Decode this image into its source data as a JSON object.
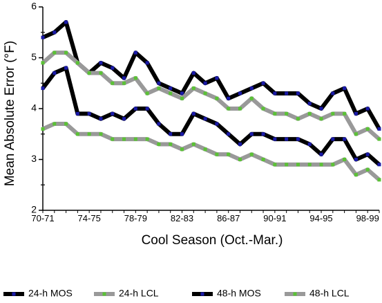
{
  "chart_data": {
    "type": "line",
    "xlabel": "Cool Season (Oct.-Mar.)",
    "ylabel": "Mean Absolute Error (°F)",
    "ylim": [
      2,
      6
    ],
    "y_ticks": [
      "2",
      "3",
      "4",
      "5",
      "6"
    ],
    "categories": [
      "70-71",
      "71-72",
      "72-73",
      "73-74",
      "74-75",
      "75-76",
      "76-77",
      "77-78",
      "78-79",
      "79-80",
      "80-81",
      "81-82",
      "82-83",
      "83-84",
      "84-85",
      "85-86",
      "86-87",
      "87-88",
      "88-89",
      "89-90",
      "90-91",
      "91-92",
      "92-93",
      "93-94",
      "94-95",
      "95-96",
      "96-97",
      "97-98",
      "98-99",
      "99-00"
    ],
    "x_tick_labels": [
      "70-71",
      "74-75",
      "78-79",
      "82-83",
      "86-87",
      "90-91",
      "94-95",
      "98-99"
    ],
    "x_tick_label_indices": [
      0,
      4,
      8,
      12,
      16,
      20,
      24,
      28
    ],
    "legend_position": "bottom",
    "series": [
      {
        "name": "24-h MOS",
        "line_color": "#000000",
        "marker_color": "#1a1aa8",
        "values": [
          4.4,
          4.7,
          4.8,
          3.9,
          3.9,
          3.8,
          3.9,
          3.8,
          4.0,
          4.0,
          3.7,
          3.5,
          3.5,
          3.9,
          3.8,
          3.7,
          3.5,
          3.3,
          3.5,
          3.5,
          3.4,
          3.4,
          3.4,
          3.3,
          3.1,
          3.4,
          3.4,
          3.0,
          3.1,
          2.9
        ]
      },
      {
        "name": "24-h LCL",
        "line_color": "#999999",
        "marker_color": "#5bc236",
        "values": [
          3.6,
          3.7,
          3.7,
          3.5,
          3.5,
          3.5,
          3.4,
          3.4,
          3.4,
          3.4,
          3.3,
          3.3,
          3.2,
          3.3,
          3.2,
          3.1,
          3.1,
          3.0,
          3.1,
          3.0,
          2.9,
          2.9,
          2.9,
          2.9,
          2.9,
          2.9,
          3.0,
          2.7,
          2.8,
          2.6
        ]
      },
      {
        "name": "48-h MOS",
        "line_color": "#000000",
        "marker_color": "#1a1aa8",
        "values": [
          5.4,
          5.5,
          5.7,
          4.9,
          4.7,
          4.9,
          4.8,
          4.6,
          5.1,
          4.9,
          4.5,
          4.4,
          4.3,
          4.7,
          4.5,
          4.6,
          4.2,
          4.3,
          4.4,
          4.5,
          4.3,
          4.3,
          4.3,
          4.1,
          4.0,
          4.3,
          4.4,
          3.9,
          4.0,
          3.6
        ]
      },
      {
        "name": "48-h LCL",
        "line_color": "#999999",
        "marker_color": "#5bc236",
        "values": [
          4.9,
          5.1,
          5.1,
          4.9,
          4.7,
          4.7,
          4.5,
          4.5,
          4.6,
          4.3,
          4.4,
          4.3,
          4.2,
          4.4,
          4.3,
          4.2,
          4.0,
          4.0,
          4.2,
          4.0,
          3.9,
          3.9,
          3.8,
          3.9,
          3.8,
          3.9,
          3.9,
          3.5,
          3.6,
          3.4
        ]
      }
    ]
  }
}
